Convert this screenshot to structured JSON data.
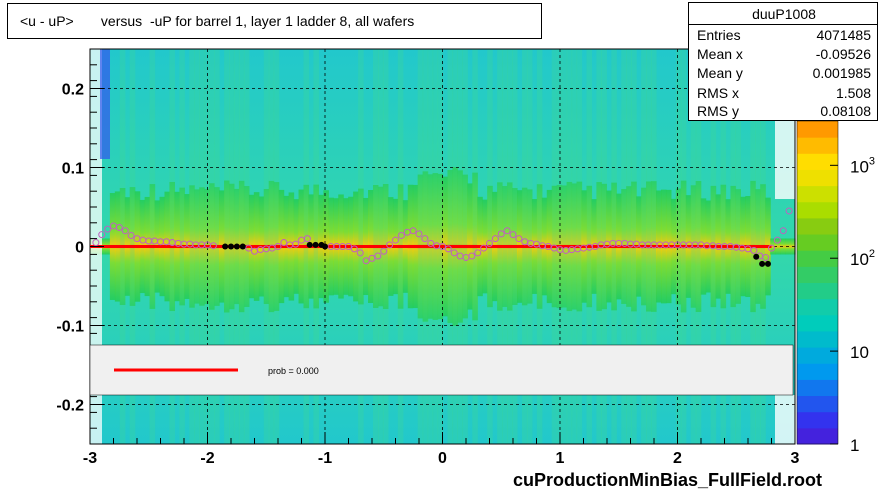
{
  "title": "<u - uP>       versus  -uP for barrel 1, layer 1 ladder 8, all wafers",
  "stats": {
    "name": "duuP1008",
    "rows": [
      {
        "key": "Entries",
        "value": "4071485"
      },
      {
        "key": "Mean x",
        "value": "-0.09526"
      },
      {
        "key": "Mean y",
        "value": "0.001985"
      },
      {
        "key": "RMS x",
        "value": "1.508"
      },
      {
        "key": "RMS y",
        "value": "0.08108"
      }
    ]
  },
  "legend": {
    "label": "prob = 0.000",
    "line_color": "#ff0000"
  },
  "footer": "cuProductionMinBias_FullField.root",
  "colors": {
    "frame": "#000000",
    "fit_line": "#ff0000",
    "profile_open": "#c060c0",
    "profile_filled": "#000000",
    "legend_bg": "#f0f0f0"
  },
  "chart_data": {
    "type": "heatmap",
    "title": "<u - uP>       versus  -uP for barrel 1, layer 1 ladder 8, all wafers",
    "xlim": [
      -3,
      3
    ],
    "ylim": [
      -0.25,
      0.25
    ],
    "x_ticks": [
      -3,
      -2,
      -1,
      0,
      1,
      2,
      3
    ],
    "y_ticks": [
      -0.2,
      -0.1,
      0,
      0.1,
      0.2
    ],
    "x_tick_labels": [
      "-3",
      "-2",
      "-1",
      "0",
      "1",
      "2",
      "3"
    ],
    "y_tick_labels": [
      "-0.2",
      "-0.1",
      "0",
      "0.1",
      "0.2"
    ],
    "grid": true,
    "colorbar": {
      "scale": "log",
      "range": [
        1,
        3000
      ],
      "tick_labels": [
        {
          "value": 1,
          "text": "1"
        },
        {
          "value": 10,
          "text": "10"
        },
        {
          "value": 100,
          "text": "10",
          "sup": "2"
        },
        {
          "value": 1000,
          "text": "10",
          "sup": "3"
        }
      ]
    },
    "fit_line": {
      "x": [
        -3,
        2.8
      ],
      "y": [
        0.0,
        0.0
      ],
      "color": "#ff0000"
    },
    "profile_open": [
      {
        "x": -2.95,
        "y": 0.005
      },
      {
        "x": -2.9,
        "y": 0.015
      },
      {
        "x": -2.85,
        "y": 0.022
      },
      {
        "x": -2.8,
        "y": 0.026
      },
      {
        "x": -2.75,
        "y": 0.024
      },
      {
        "x": -2.7,
        "y": 0.02
      },
      {
        "x": -2.65,
        "y": 0.014
      },
      {
        "x": -2.6,
        "y": 0.01
      },
      {
        "x": -2.55,
        "y": 0.008
      },
      {
        "x": -2.5,
        "y": 0.007
      },
      {
        "x": -2.45,
        "y": 0.007
      },
      {
        "x": -2.4,
        "y": 0.006
      },
      {
        "x": -2.35,
        "y": 0.006
      },
      {
        "x": -2.3,
        "y": 0.005
      },
      {
        "x": -2.25,
        "y": 0.004
      },
      {
        "x": -2.2,
        "y": 0.003
      },
      {
        "x": -2.15,
        "y": 0.003
      },
      {
        "x": -2.1,
        "y": 0.002
      },
      {
        "x": -2.05,
        "y": 0.002
      },
      {
        "x": -2.0,
        "y": 0.002
      },
      {
        "x": -1.95,
        "y": 0.001
      },
      {
        "x": -1.65,
        "y": -0.002
      },
      {
        "x": -1.6,
        "y": -0.006
      },
      {
        "x": -1.55,
        "y": -0.004
      },
      {
        "x": -1.5,
        "y": -0.003
      },
      {
        "x": -1.45,
        "y": -0.002
      },
      {
        "x": -1.4,
        "y": 0.0
      },
      {
        "x": -1.35,
        "y": 0.005
      },
      {
        "x": -1.3,
        "y": 0.002
      },
      {
        "x": -1.25,
        "y": 0.003
      },
      {
        "x": -1.2,
        "y": 0.008
      },
      {
        "x": -1.15,
        "y": 0.01
      },
      {
        "x": -0.95,
        "y": 0.0
      },
      {
        "x": -0.9,
        "y": 0.0
      },
      {
        "x": -0.85,
        "y": 0.0
      },
      {
        "x": -0.8,
        "y": 0.0
      },
      {
        "x": -0.75,
        "y": -0.003
      },
      {
        "x": -0.7,
        "y": -0.008
      },
      {
        "x": -0.65,
        "y": -0.018
      },
      {
        "x": -0.6,
        "y": -0.015
      },
      {
        "x": -0.55,
        "y": -0.012
      },
      {
        "x": -0.5,
        "y": -0.006
      },
      {
        "x": -0.45,
        "y": 0.002
      },
      {
        "x": -0.4,
        "y": 0.008
      },
      {
        "x": -0.35,
        "y": 0.014
      },
      {
        "x": -0.3,
        "y": 0.018
      },
      {
        "x": -0.25,
        "y": 0.02
      },
      {
        "x": -0.2,
        "y": 0.016
      },
      {
        "x": -0.15,
        "y": 0.01
      },
      {
        "x": -0.1,
        "y": 0.004
      },
      {
        "x": -0.05,
        "y": 0.001
      },
      {
        "x": 0.0,
        "y": 0.0
      },
      {
        "x": 0.05,
        "y": -0.003
      },
      {
        "x": 0.1,
        "y": -0.008
      },
      {
        "x": 0.15,
        "y": -0.012
      },
      {
        "x": 0.2,
        "y": -0.014
      },
      {
        "x": 0.25,
        "y": -0.012
      },
      {
        "x": 0.3,
        "y": -0.008
      },
      {
        "x": 0.35,
        "y": -0.002
      },
      {
        "x": 0.4,
        "y": 0.004
      },
      {
        "x": 0.45,
        "y": 0.01
      },
      {
        "x": 0.5,
        "y": 0.016
      },
      {
        "x": 0.55,
        "y": 0.02
      },
      {
        "x": 0.6,
        "y": 0.015
      },
      {
        "x": 0.65,
        "y": 0.01
      },
      {
        "x": 0.7,
        "y": 0.006
      },
      {
        "x": 0.75,
        "y": 0.004
      },
      {
        "x": 0.8,
        "y": 0.003
      },
      {
        "x": 0.85,
        "y": 0.001
      },
      {
        "x": 0.9,
        "y": 0.0
      },
      {
        "x": 0.95,
        "y": -0.002
      },
      {
        "x": 1.0,
        "y": -0.004
      },
      {
        "x": 1.05,
        "y": -0.005
      },
      {
        "x": 1.1,
        "y": -0.004
      },
      {
        "x": 1.15,
        "y": -0.003
      },
      {
        "x": 1.2,
        "y": -0.002
      },
      {
        "x": 1.25,
        "y": -0.001
      },
      {
        "x": 1.3,
        "y": 0.0
      },
      {
        "x": 1.35,
        "y": 0.002
      },
      {
        "x": 1.4,
        "y": 0.003
      },
      {
        "x": 1.45,
        "y": 0.004
      },
      {
        "x": 1.5,
        "y": 0.004
      },
      {
        "x": 1.55,
        "y": 0.004
      },
      {
        "x": 1.6,
        "y": 0.003
      },
      {
        "x": 1.65,
        "y": 0.003
      },
      {
        "x": 1.7,
        "y": 0.002
      },
      {
        "x": 1.75,
        "y": 0.002
      },
      {
        "x": 1.8,
        "y": 0.002
      },
      {
        "x": 1.85,
        "y": 0.002
      },
      {
        "x": 1.9,
        "y": 0.002
      },
      {
        "x": 1.95,
        "y": 0.002
      },
      {
        "x": 2.0,
        "y": 0.002
      },
      {
        "x": 2.05,
        "y": 0.002
      },
      {
        "x": 2.1,
        "y": 0.002
      },
      {
        "x": 2.15,
        "y": 0.002
      },
      {
        "x": 2.2,
        "y": 0.002
      },
      {
        "x": 2.25,
        "y": 0.001
      },
      {
        "x": 2.3,
        "y": 0.001
      },
      {
        "x": 2.35,
        "y": 0.0
      },
      {
        "x": 2.4,
        "y": 0.0
      },
      {
        "x": 2.45,
        "y": 0.0
      },
      {
        "x": 2.5,
        "y": -0.001
      },
      {
        "x": 2.55,
        "y": -0.002
      },
      {
        "x": 2.6,
        "y": -0.003
      },
      {
        "x": 2.65,
        "y": -0.005
      },
      {
        "x": 2.7,
        "y": -0.012
      },
      {
        "x": 2.75,
        "y": -0.014
      },
      {
        "x": 2.8,
        "y": -0.002
      },
      {
        "x": 2.85,
        "y": 0.008
      },
      {
        "x": 2.9,
        "y": 0.02
      },
      {
        "x": 2.95,
        "y": 0.045
      }
    ],
    "profile_filled": [
      {
        "x": -1.85,
        "y": 0.0
      },
      {
        "x": -1.8,
        "y": 0.0
      },
      {
        "x": -1.75,
        "y": 0.0
      },
      {
        "x": -1.7,
        "y": 0.0
      },
      {
        "x": -1.13,
        "y": 0.002
      },
      {
        "x": -1.08,
        "y": 0.002
      },
      {
        "x": -1.03,
        "y": 0.002
      },
      {
        "x": -1.0,
        "y": 0.0
      },
      {
        "x": 2.67,
        "y": -0.013
      },
      {
        "x": 2.72,
        "y": -0.022
      },
      {
        "x": 2.77,
        "y": -0.022
      }
    ],
    "legend": [
      {
        "label": "prob = 0.000",
        "color": "#ff0000"
      }
    ]
  }
}
